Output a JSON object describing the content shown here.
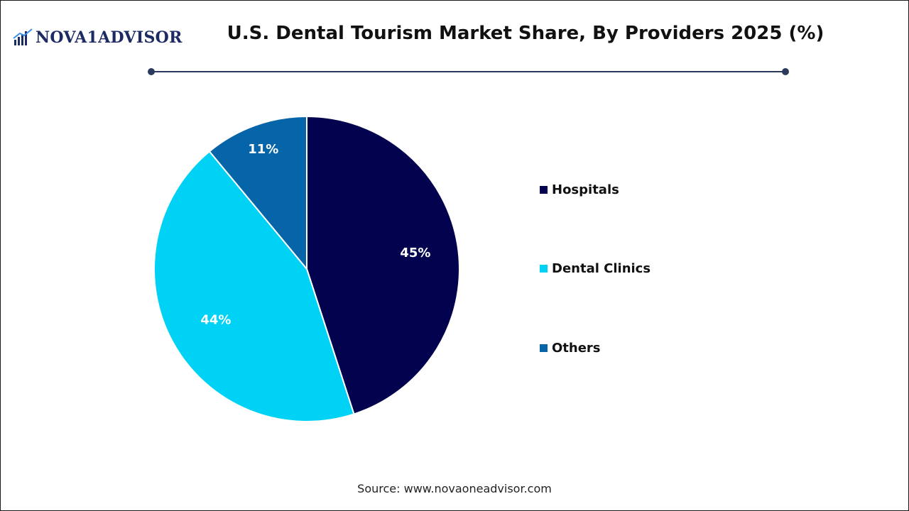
{
  "header": {
    "logo_text": "NOVA1ADVISOR",
    "title": "U.S. Dental Tourism Market Share, By Providers 2025 (%)"
  },
  "colors": {
    "Hospitals": "#03024f",
    "Dental Clinics": "#00d2f5",
    "Others": "#0565a8",
    "label_text": "#ffffff",
    "rule": "#2b3a5c",
    "logo": "#1d2b64"
  },
  "chart_data": {
    "type": "pie",
    "title": "U.S. Dental Tourism Market Share, By Providers 2025 (%)",
    "categories": [
      "Hospitals",
      "Dental Clinics",
      "Others"
    ],
    "values": [
      45,
      44,
      11
    ],
    "labels": [
      "45%",
      "44%",
      "11%"
    ],
    "legend_position": "right"
  },
  "legend": {
    "items": [
      "Hospitals",
      "Dental Clinics",
      "Others"
    ]
  },
  "footer": {
    "source": "Source: www.novaoneadvisor.com"
  }
}
